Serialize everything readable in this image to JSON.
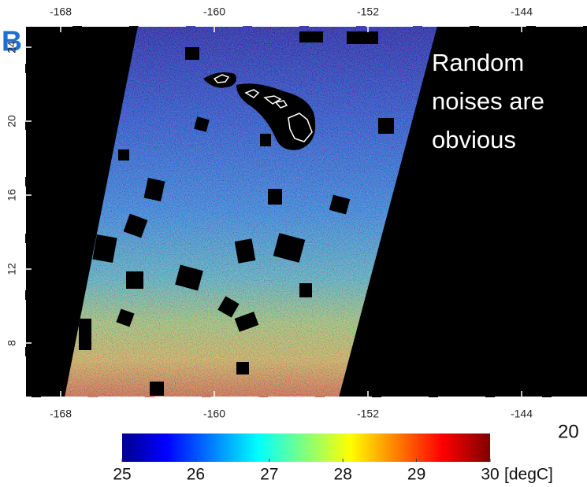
{
  "map": {
    "label": "B",
    "lon_ticks": [
      -168,
      -160,
      -152,
      -144
    ],
    "lat_ticks": [
      24,
      20,
      16,
      12,
      8
    ],
    "annotation": [
      "Random",
      "noises are",
      "obvious"
    ],
    "corner_text": "20",
    "colorbar": {
      "ticks": [
        25,
        26,
        27,
        28,
        29,
        30
      ],
      "unit": "[degC]"
    }
  }
}
